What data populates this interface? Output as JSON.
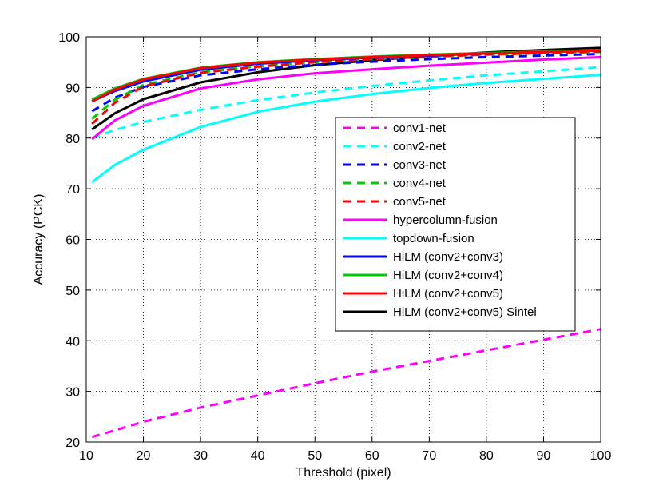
{
  "chart_data": {
    "type": "line",
    "title": "",
    "xlabel": "Threshold (pixel)",
    "ylabel": "Accuracy (PCK)",
    "xlim": [
      10,
      100
    ],
    "ylim": [
      20,
      100
    ],
    "xticks": [
      10,
      20,
      30,
      40,
      50,
      60,
      70,
      80,
      90,
      100
    ],
    "yticks": [
      20,
      30,
      40,
      50,
      60,
      70,
      80,
      90,
      100
    ],
    "grid": true,
    "legend_position": "right",
    "series": [
      {
        "name": "conv1-net",
        "color": "#ff00ff",
        "dash": "dashed",
        "x": [
          11,
          15,
          20,
          30,
          40,
          50,
          60,
          70,
          80,
          90,
          100
        ],
        "y": [
          21.0,
          22.3,
          24.0,
          26.8,
          29.2,
          31.6,
          33.9,
          36.0,
          38.1,
          40.2,
          42.3
        ]
      },
      {
        "name": "conv2-net",
        "color": "#00ffff",
        "dash": "dashed",
        "x": [
          11,
          15,
          20,
          30,
          40,
          50,
          60,
          70,
          80,
          90,
          100
        ],
        "y": [
          80.0,
          81.6,
          83.2,
          85.6,
          87.5,
          89.0,
          90.3,
          91.4,
          92.4,
          93.2,
          94.0
        ]
      },
      {
        "name": "conv3-net",
        "color": "#0000ff",
        "dash": "dashed",
        "x": [
          11,
          15,
          20,
          30,
          40,
          50,
          60,
          70,
          80,
          90,
          100
        ],
        "y": [
          85.3,
          88.0,
          90.1,
          92.4,
          93.6,
          94.5,
          95.1,
          95.6,
          96.0,
          96.3,
          96.6
        ]
      },
      {
        "name": "conv4-net",
        "color": "#00cc00",
        "dash": "dashed",
        "x": [
          11,
          15,
          20,
          30,
          40,
          50,
          60,
          70,
          80,
          90,
          100
        ],
        "y": [
          83.8,
          87.6,
          90.5,
          93.0,
          94.2,
          95.0,
          95.6,
          96.1,
          96.5,
          96.8,
          97.0
        ]
      },
      {
        "name": "conv5-net",
        "color": "#ff0000",
        "dash": "dashed",
        "x": [
          11,
          15,
          20,
          30,
          40,
          50,
          60,
          70,
          80,
          90,
          100
        ],
        "y": [
          82.8,
          87.0,
          90.2,
          92.9,
          94.1,
          95.0,
          95.6,
          96.1,
          96.5,
          96.8,
          97.1
        ]
      },
      {
        "name": "hypercolumn-fusion",
        "color": "#ff00ff",
        "dash": "solid",
        "x": [
          11,
          15,
          20,
          30,
          40,
          50,
          60,
          70,
          80,
          90,
          100
        ],
        "y": [
          79.8,
          83.5,
          86.4,
          89.8,
          91.6,
          92.8,
          93.6,
          94.3,
          94.9,
          95.5,
          96.0
        ]
      },
      {
        "name": "topdown-fusion",
        "color": "#00ffff",
        "dash": "solid",
        "x": [
          11,
          15,
          20,
          30,
          40,
          50,
          60,
          70,
          80,
          90,
          100
        ],
        "y": [
          71.3,
          74.7,
          77.7,
          82.2,
          85.2,
          87.2,
          88.7,
          89.9,
          90.9,
          91.7,
          92.5
        ]
      },
      {
        "name": "HiLM (conv2+conv3)",
        "color": "#0000ff",
        "dash": "solid",
        "x": [
          11,
          15,
          20,
          30,
          40,
          50,
          60,
          70,
          80,
          90,
          100
        ],
        "y": [
          87.3,
          89.3,
          91.2,
          93.5,
          94.7,
          95.4,
          95.9,
          96.3,
          96.7,
          97.0,
          97.3
        ]
      },
      {
        "name": "HiLM (conv2+conv4)",
        "color": "#00cc00",
        "dash": "solid",
        "x": [
          11,
          15,
          20,
          30,
          40,
          50,
          60,
          70,
          80,
          90,
          100
        ],
        "y": [
          87.6,
          89.8,
          91.7,
          93.9,
          95.0,
          95.6,
          96.1,
          96.5,
          96.8,
          97.1,
          97.4
        ]
      },
      {
        "name": "HiLM (conv2+conv5)",
        "color": "#ff0000",
        "dash": "solid",
        "x": [
          11,
          15,
          20,
          30,
          40,
          50,
          60,
          70,
          80,
          90,
          100
        ],
        "y": [
          87.2,
          89.6,
          91.6,
          93.8,
          94.9,
          95.5,
          96.0,
          96.4,
          96.7,
          97.0,
          97.3
        ]
      },
      {
        "name": "HiLM (conv2+conv5) Sintel",
        "color": "#000000",
        "dash": "solid",
        "x": [
          11,
          15,
          20,
          30,
          40,
          50,
          60,
          70,
          80,
          90,
          100
        ],
        "y": [
          81.7,
          84.9,
          87.7,
          91.0,
          93.0,
          94.4,
          95.4,
          96.2,
          96.9,
          97.4,
          97.8
        ]
      }
    ]
  }
}
